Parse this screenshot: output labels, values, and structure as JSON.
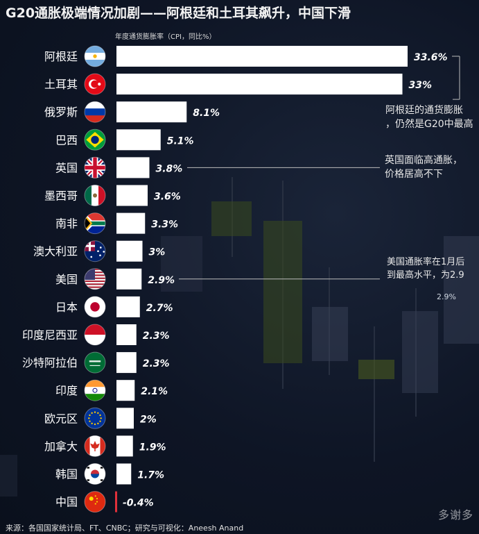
{
  "title": "G20通胀极端情况加剧——阿根廷和土耳其飙升，中国下滑",
  "source": "来源：各国国家统计局、FT、CNBC；研究与可视化：Aneesh Anand",
  "colors": {
    "bar": "#ffffff",
    "negative_bar": "#e0303a",
    "background": "#0d1424",
    "annotation_line": "#bcbcbc"
  },
  "chart_data": {
    "type": "bar",
    "orientation": "horizontal",
    "subtitle": "年度通货膨胀率（CPI，同比%）",
    "categories": [
      "阿根廷",
      "土耳其",
      "俄罗斯",
      "巴西",
      "英国",
      "墨西哥",
      "南非",
      "澳大利亚",
      "美国",
      "日本",
      "印度尼西亚",
      "沙特阿拉伯",
      "印度",
      "欧元区",
      "加拿大",
      "韩国",
      "中国"
    ],
    "values": [
      33.6,
      33,
      8.1,
      5.1,
      3.8,
      3.6,
      3.3,
      3,
      2.9,
      2.7,
      2.3,
      2.3,
      2.1,
      2,
      1.9,
      1.7,
      -0.4
    ],
    "value_labels": [
      "33.6%",
      "33%",
      "8.1%",
      "5.1%",
      "3.8%",
      "3.6%",
      "3.3%",
      "3%",
      "2.9%",
      "2.7%",
      "2.3%",
      "2.3%",
      "2.1%",
      "2%",
      "1.9%",
      "1.7%",
      "-0.4%"
    ],
    "flag_icons": [
      "argentina-flag",
      "turkey-flag",
      "russia-flag",
      "brazil-flag",
      "uk-flag",
      "mexico-flag",
      "south-africa-flag",
      "australia-flag",
      "usa-flag",
      "japan-flag",
      "indonesia-flag",
      "saudi-arabia-flag",
      "india-flag",
      "eu-flag",
      "canada-flag",
      "korea-flag",
      "china-flag"
    ],
    "annotations": [
      {
        "lines": [
          "阿根廷的通货膨胀",
          "，仍然是G20中最高"
        ],
        "category": "阿根廷"
      },
      {
        "lines": [
          "英国面临高通胀，",
          "价格居高不下"
        ],
        "category": "英国"
      },
      {
        "lines": [
          "美国通胀率在1月后",
          "到最高水平，为2.9"
        ],
        "category": "美国",
        "note": "2.9%"
      }
    ]
  },
  "watermark": "多谢多"
}
